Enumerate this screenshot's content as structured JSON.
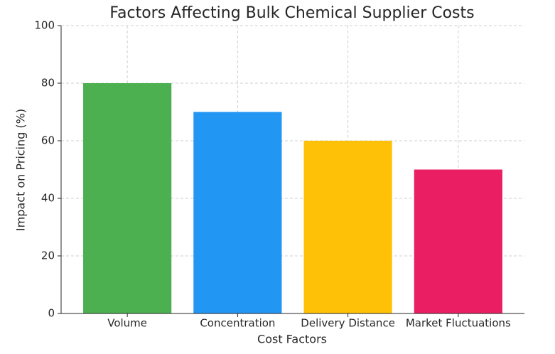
{
  "chart_data": {
    "type": "bar",
    "title": "Factors Affecting Bulk Chemical Supplier Costs",
    "x_label": "Cost Factors",
    "y_label": "Impact on Pricing (%)",
    "categories": [
      "Volume",
      "Concentration",
      "Delivery Distance",
      "Market Fluctuations"
    ],
    "values": [
      80,
      70,
      60,
      50
    ],
    "colors": [
      "#4caf50",
      "#2196f3",
      "#ffc107",
      "#e91e63"
    ],
    "ylim": [
      0,
      100
    ],
    "yticks": [
      0,
      20,
      40,
      60,
      80,
      100
    ],
    "grid": true
  }
}
